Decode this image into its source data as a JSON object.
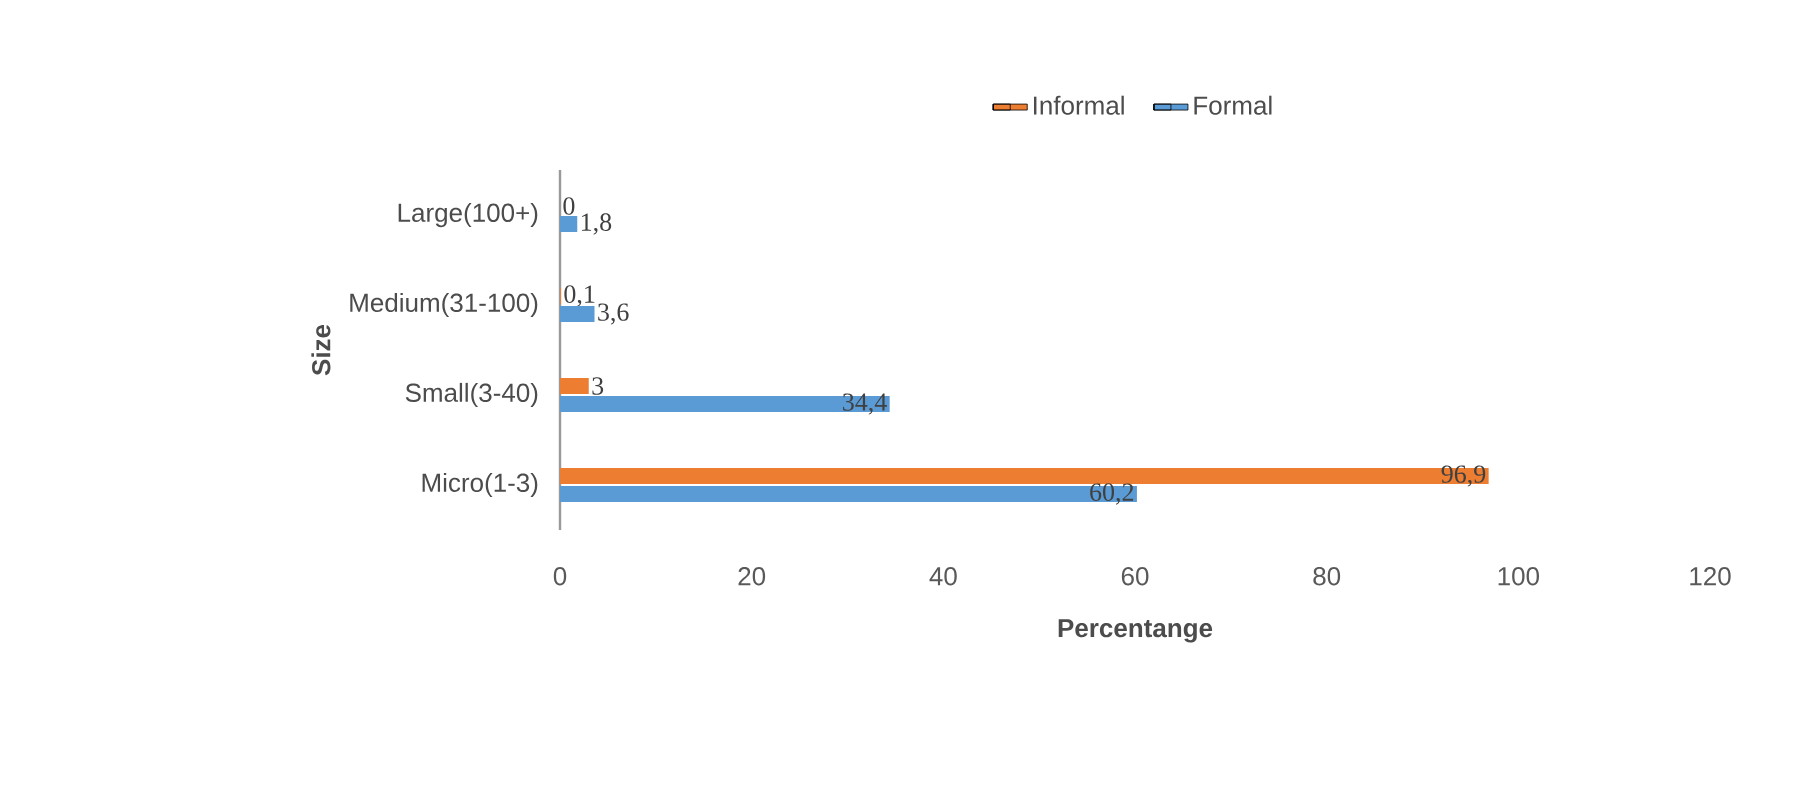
{
  "chart_data": {
    "type": "bar",
    "orientation": "horizontal",
    "ylabel": "Size",
    "xlabel": "Percentange",
    "categories": [
      "Large(100+)",
      "Medium(31-100)",
      "Small(3-40)",
      "Micro(1-3)"
    ],
    "series": [
      {
        "name": "Informal",
        "color": "#ed7d31",
        "values": [
          0,
          0.1,
          3,
          96.9
        ],
        "value_labels": [
          "0",
          "0,1",
          "3",
          "96,9"
        ]
      },
      {
        "name": "Formal",
        "color": "#5b9bd5",
        "values": [
          1.8,
          3.6,
          34.4,
          60.2
        ],
        "value_labels": [
          "1,8",
          "3,6",
          "34,4",
          "60,2"
        ]
      }
    ],
    "xlim": [
      0,
      120
    ],
    "xticks": [
      0,
      20,
      40,
      60,
      80,
      100,
      120
    ],
    "legend": "top",
    "grid": false
  }
}
